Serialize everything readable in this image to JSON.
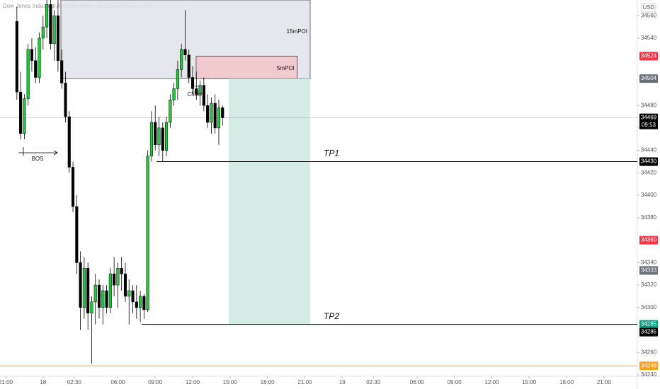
{
  "chart_data": {
    "type": "candlestick",
    "title": "Dow Jones Industrial Average Index, 35, CURRENCYCOM",
    "currency": "USD",
    "up_color": "#1fc93a",
    "down_color": "#000000",
    "xlim": [
      -0.4545,
      50.68
    ],
    "ylim": [
      34240,
      34574
    ],
    "grid": false,
    "xticks": [
      {
        "value": 0,
        "label": "21:00"
      },
      {
        "value": 3,
        "label": "18"
      },
      {
        "value": 5.5,
        "label": "02:30"
      },
      {
        "value": 9,
        "label": "06:00"
      },
      {
        "value": 12,
        "label": "09:00"
      },
      {
        "value": 15,
        "label": "12:00"
      },
      {
        "value": 18,
        "label": "15:00"
      },
      {
        "value": 21,
        "label": "18:00"
      },
      {
        "value": 24,
        "label": "21:00"
      },
      {
        "value": 27,
        "label": "19"
      },
      {
        "value": 29.5,
        "label": "02:30"
      },
      {
        "value": 33,
        "label": "06:00"
      },
      {
        "value": 36,
        "label": "09:00"
      },
      {
        "value": 39,
        "label": "12:00"
      },
      {
        "value": 42,
        "label": "15:00"
      },
      {
        "value": 45,
        "label": "18:00"
      },
      {
        "value": 48,
        "label": "21:00"
      }
    ],
    "yticks": [
      34240,
      34260,
      34300,
      34320,
      34340,
      34380,
      34400,
      34420,
      34440,
      34460,
      34480,
      34540,
      34560
    ],
    "x": [
      0.9,
      1.2,
      1.5,
      1.8,
      2.1,
      2.4,
      2.7,
      3,
      3.3,
      3.6,
      3.9,
      4.2,
      4.5,
      4.8,
      5.1,
      5.4,
      5.7,
      6,
      6.3,
      6.6,
      6.9,
      7.2,
      7.5,
      7.8,
      8.1,
      8.4,
      8.7,
      9,
      9.3,
      9.6,
      9.9,
      10.2,
      10.5,
      10.8,
      11.1,
      11.4,
      11.7,
      12,
      12.3,
      12.6,
      12.9,
      13.2,
      13.5,
      13.8,
      14.1,
      14.4,
      14.7,
      15,
      15.3,
      15.6,
      15.9,
      16.2,
      16.5,
      16.8,
      17.1,
      17.4
    ],
    "open": [
      34555,
      34492,
      34455,
      34486,
      34530,
      34520,
      34505,
      34540,
      34550,
      34570,
      34535,
      34560,
      34520,
      34500,
      34470,
      34425,
      34390,
      34340,
      34300,
      34335,
      34295,
      34305,
      34320,
      34300,
      34315,
      34300,
      34330,
      34320,
      34335,
      34330,
      34310,
      34315,
      34305,
      34300,
      34310,
      34298,
      34435,
      34465,
      34445,
      34460,
      34440,
      34465,
      34485,
      34495,
      34512,
      34530,
      34525,
      34505,
      34495,
      34490,
      34498,
      34480,
      34465,
      34482,
      34460,
      34478
    ],
    "high": [
      34568,
      34510,
      34490,
      34535,
      34540,
      34532,
      34545,
      34560,
      34575,
      34575,
      34565,
      34575,
      34530,
      34510,
      34475,
      34430,
      34400,
      34350,
      34345,
      34340,
      34310,
      34330,
      34325,
      34320,
      34320,
      34335,
      34345,
      34340,
      34345,
      34340,
      34325,
      34320,
      34320,
      34315,
      34312,
      34440,
      34475,
      34480,
      34470,
      34465,
      34470,
      34490,
      34500,
      34520,
      34535,
      34565,
      34530,
      34515,
      34510,
      34502,
      34505,
      34490,
      34487,
      34490,
      34485,
      34480
    ],
    "low": [
      34485,
      34450,
      34450,
      34480,
      34510,
      34500,
      34500,
      34530,
      34540,
      34530,
      34520,
      34510,
      34495,
      34465,
      34420,
      34385,
      34330,
      34280,
      34290,
      34280,
      34250,
      34285,
      34290,
      34285,
      34295,
      34295,
      34310,
      34300,
      34315,
      34305,
      34285,
      34295,
      34290,
      34287,
      34290,
      34296,
      34430,
      34440,
      34435,
      34430,
      34435,
      34460,
      34480,
      34485,
      34505,
      34520,
      34500,
      34490,
      34485,
      34480,
      34475,
      34460,
      34455,
      34455,
      34445,
      34462
    ],
    "close": [
      34492,
      34455,
      34486,
      34530,
      34520,
      34505,
      34540,
      34550,
      34570,
      34535,
      34560,
      34520,
      34500,
      34470,
      34425,
      34390,
      34340,
      34300,
      34335,
      34295,
      34305,
      34320,
      34300,
      34315,
      34300,
      34330,
      34320,
      34335,
      34330,
      34310,
      34315,
      34305,
      34300,
      34310,
      34298,
      34435,
      34465,
      34445,
      34460,
      34440,
      34465,
      34485,
      34495,
      34512,
      34530,
      34525,
      34505,
      34495,
      34490,
      34498,
      34480,
      34465,
      34482,
      34460,
      34478,
      34469
    ],
    "zones": [
      {
        "label": "15mPOI",
        "x0": 4.43,
        "x1": 24.43,
        "y0": 34504,
        "y1": 34574,
        "color": "#e3e5ea"
      },
      {
        "label": "5mPOI",
        "x0": 15.28,
        "x1": 23.4,
        "y0": 34504,
        "y1": 34524,
        "color": "#f2c7cc"
      },
      {
        "x0": 17.9,
        "x1": 24.43,
        "y0": 34285,
        "y1": 34504,
        "color": "#cfeae2"
      }
    ],
    "levels": [
      {
        "label": "TP1",
        "value": 34430,
        "x0": 12.1
      },
      {
        "label": "TP2",
        "value": 34285,
        "x0": 10.9
      }
    ],
    "annotations": [
      "Choch",
      "BOS"
    ],
    "last_price": 34469,
    "countdown": "09:53",
    "orange_level": 34248,
    "price_labels": [
      {
        "value": 34524,
        "color": "#f23645"
      },
      {
        "value": 34504,
        "color": "#6b6f78"
      },
      {
        "value": 34430,
        "color": "#000000"
      },
      {
        "value": 34360,
        "color": "#f23645"
      },
      {
        "value": 34333,
        "color": "#6b6f78"
      },
      {
        "value": 34285,
        "color": "#089981"
      },
      {
        "value": 34285,
        "color": "#000000"
      },
      {
        "value": 34248,
        "color": "#f7a21b"
      }
    ]
  }
}
